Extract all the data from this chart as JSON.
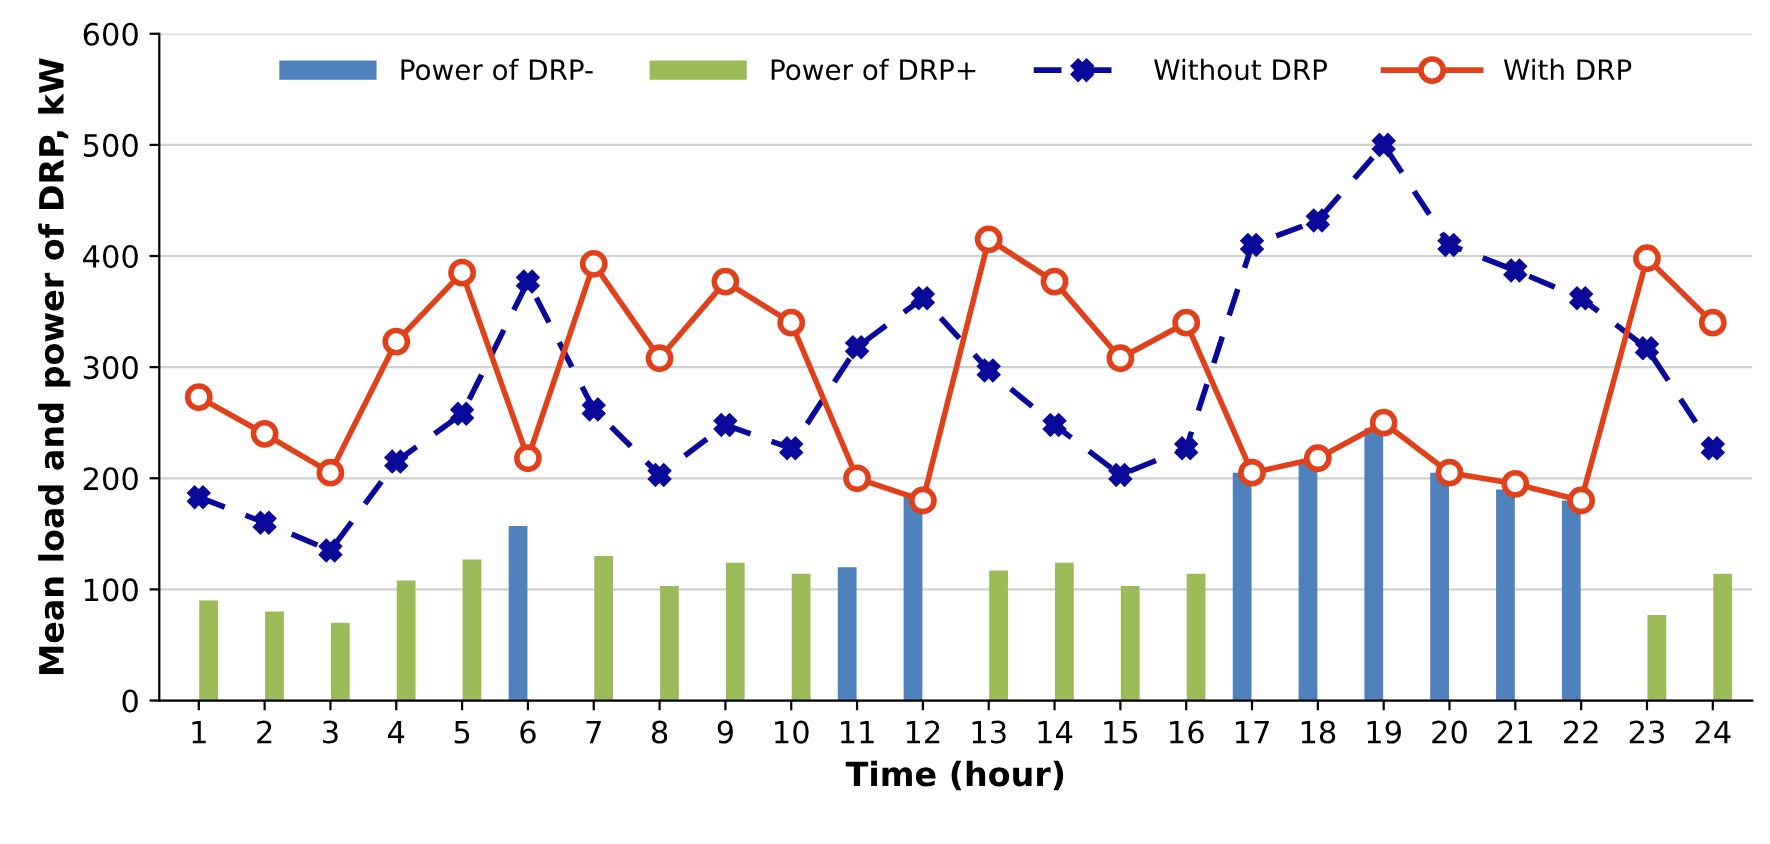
{
  "chart_data": {
    "type": "bar",
    "xlabel": "Time (hour)",
    "ylabel": "Mean load and power of DRP, kW",
    "categories": [
      "1",
      "2",
      "3",
      "4",
      "5",
      "6",
      "7",
      "8",
      "9",
      "10",
      "11",
      "12",
      "13",
      "14",
      "15",
      "16",
      "17",
      "18",
      "19",
      "20",
      "21",
      "22",
      "23",
      "24"
    ],
    "series": [
      {
        "name": "Power of DRP-",
        "color": "#4f81bd",
        "values": [
          null,
          null,
          null,
          null,
          null,
          157,
          null,
          null,
          null,
          null,
          120,
          185,
          null,
          null,
          null,
          null,
          205,
          215,
          245,
          205,
          190,
          180,
          null,
          null
        ]
      },
      {
        "name": "Power of DRP+",
        "color": "#9bbb59",
        "values": [
          90,
          80,
          70,
          108,
          127,
          null,
          130,
          103,
          124,
          114,
          null,
          null,
          117,
          124,
          103,
          114,
          null,
          null,
          null,
          null,
          null,
          null,
          77,
          114
        ]
      },
      {
        "name": "Without DRP",
        "type": "line",
        "color": "#0a0a9a",
        "marker": "cross",
        "line_style": "dashed",
        "values": [
          183,
          160,
          135,
          215,
          258,
          377,
          262,
          203,
          248,
          227,
          318,
          362,
          297,
          248,
          203,
          227,
          410,
          432,
          500,
          410,
          387,
          362,
          317,
          227
        ]
      },
      {
        "name": "With DRP",
        "type": "line",
        "color": "#e0401a",
        "marker": "circle",
        "line_style": "solid",
        "values": [
          273,
          240,
          205,
          323,
          385,
          218,
          393,
          308,
          377,
          340,
          200,
          180,
          415,
          377,
          308,
          340,
          205,
          218,
          250,
          205,
          195,
          180,
          398,
          340
        ]
      }
    ],
    "ylim": [
      0,
      600
    ],
    "yticks": [
      0,
      100,
      200,
      300,
      400,
      500,
      600
    ],
    "grid": "y",
    "legend": "top"
  }
}
